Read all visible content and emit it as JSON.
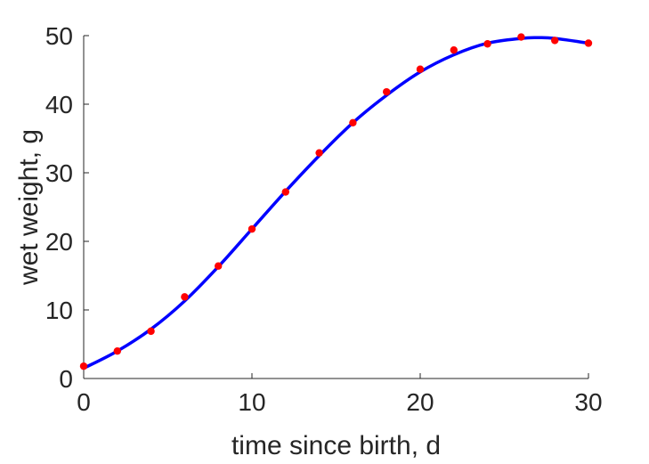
{
  "chart_data": {
    "type": "scatter",
    "xlabel": "time since birth, d",
    "ylabel": "wet weight, g",
    "xlim": [
      0,
      30
    ],
    "ylim": [
      0,
      50
    ],
    "xticks": [
      0,
      10,
      20,
      30
    ],
    "yticks": [
      0,
      10,
      20,
      30,
      40,
      50
    ],
    "grid": false,
    "legend": "none",
    "series": [
      {
        "kind": "points",
        "color": "#ff0000",
        "x": [
          0,
          2,
          4,
          6,
          8,
          10,
          12,
          14,
          16,
          18,
          20,
          22,
          24,
          26,
          28,
          30
        ],
        "y": [
          1.8,
          4.0,
          6.9,
          11.9,
          16.4,
          21.8,
          27.2,
          32.9,
          37.3,
          41.8,
          45.1,
          47.9,
          48.8,
          49.8,
          49.3,
          48.9
        ]
      },
      {
        "kind": "line",
        "color": "#0000ff",
        "x": [
          0,
          2,
          4,
          6,
          8,
          10,
          12,
          14,
          16,
          18,
          20,
          22,
          24,
          26,
          27,
          28,
          30
        ],
        "y": [
          1.5,
          4.0,
          7.2,
          11.3,
          16.3,
          21.8,
          27.3,
          32.5,
          37.3,
          41.3,
          44.7,
          47.2,
          48.9,
          49.6,
          49.7,
          49.6,
          48.9
        ]
      }
    ]
  }
}
